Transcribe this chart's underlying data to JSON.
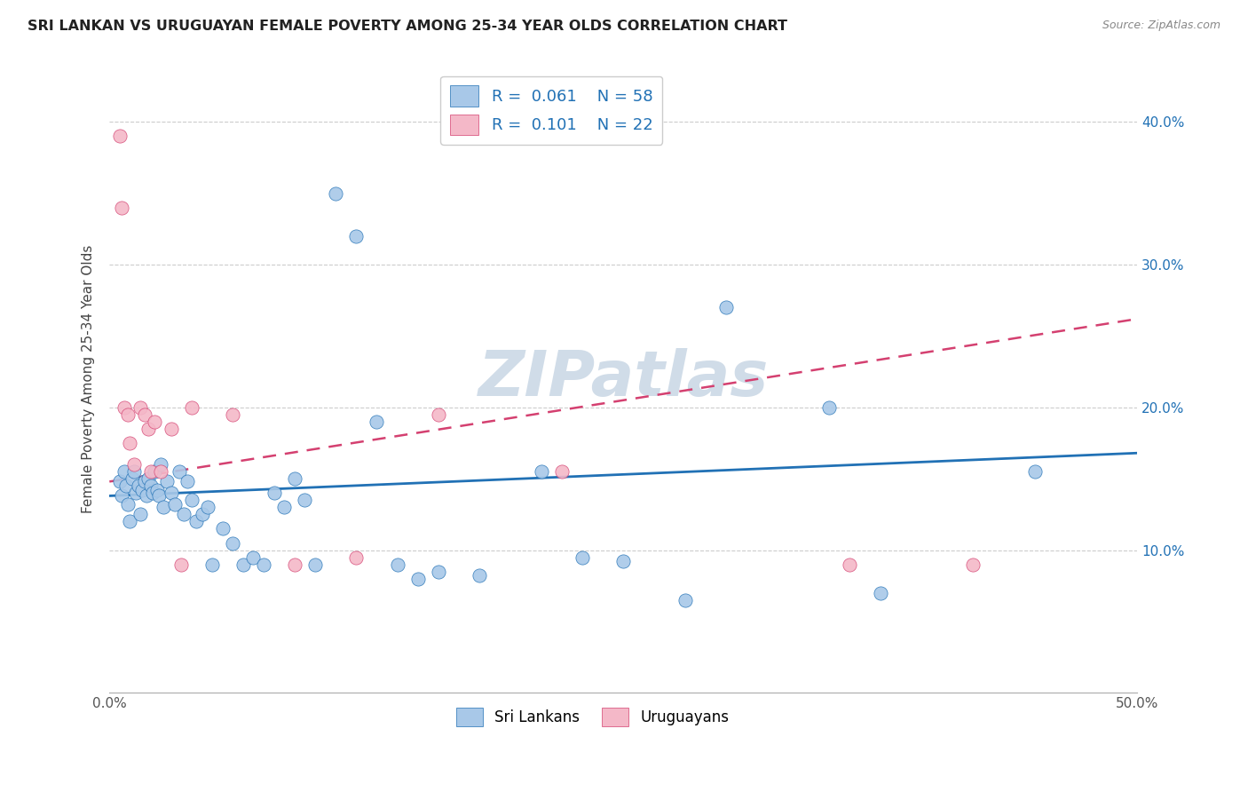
{
  "title": "SRI LANKAN VS URUGUAYAN FEMALE POVERTY AMONG 25-34 YEAR OLDS CORRELATION CHART",
  "source": "Source: ZipAtlas.com",
  "ylabel": "Female Poverty Among 25-34 Year Olds",
  "xlim": [
    0.0,
    0.5
  ],
  "ylim": [
    0.0,
    0.44
  ],
  "xticks": [
    0.0,
    0.1,
    0.2,
    0.3,
    0.4,
    0.5
  ],
  "xticklabels": [
    "0.0%",
    "",
    "",
    "",
    "",
    "50.0%"
  ],
  "yticks": [
    0.1,
    0.2,
    0.3,
    0.4
  ],
  "yticklabels": [
    "10.0%",
    "20.0%",
    "30.0%",
    "40.0%"
  ],
  "sri_lankans_R": "0.061",
  "sri_lankans_N": "58",
  "uruguayans_R": "0.101",
  "uruguayans_N": "22",
  "blue_color": "#a8c8e8",
  "pink_color": "#f4b8c8",
  "blue_line_color": "#2171b5",
  "pink_line_color": "#d44070",
  "watermark_color": "#d0dce8",
  "background_color": "#ffffff",
  "sri_lankans_x": [
    0.005,
    0.006,
    0.007,
    0.008,
    0.009,
    0.01,
    0.011,
    0.012,
    0.013,
    0.014,
    0.015,
    0.016,
    0.017,
    0.018,
    0.019,
    0.02,
    0.021,
    0.022,
    0.023,
    0.024,
    0.025,
    0.026,
    0.028,
    0.03,
    0.032,
    0.034,
    0.036,
    0.038,
    0.04,
    0.042,
    0.045,
    0.048,
    0.05,
    0.055,
    0.06,
    0.065,
    0.07,
    0.075,
    0.08,
    0.085,
    0.09,
    0.095,
    0.1,
    0.11,
    0.12,
    0.13,
    0.14,
    0.15,
    0.16,
    0.18,
    0.21,
    0.23,
    0.25,
    0.28,
    0.3,
    0.35,
    0.375,
    0.45
  ],
  "sri_lankans_y": [
    0.148,
    0.138,
    0.155,
    0.145,
    0.132,
    0.12,
    0.15,
    0.155,
    0.14,
    0.145,
    0.125,
    0.142,
    0.148,
    0.138,
    0.15,
    0.145,
    0.14,
    0.155,
    0.142,
    0.138,
    0.16,
    0.13,
    0.148,
    0.14,
    0.132,
    0.155,
    0.125,
    0.148,
    0.135,
    0.12,
    0.125,
    0.13,
    0.09,
    0.115,
    0.105,
    0.09,
    0.095,
    0.09,
    0.14,
    0.13,
    0.15,
    0.135,
    0.09,
    0.35,
    0.32,
    0.19,
    0.09,
    0.08,
    0.085,
    0.082,
    0.155,
    0.095,
    0.092,
    0.065,
    0.27,
    0.2,
    0.07,
    0.155
  ],
  "uruguayans_x": [
    0.005,
    0.006,
    0.007,
    0.009,
    0.01,
    0.012,
    0.015,
    0.017,
    0.019,
    0.02,
    0.022,
    0.025,
    0.03,
    0.035,
    0.04,
    0.06,
    0.09,
    0.12,
    0.16,
    0.22,
    0.36,
    0.42
  ],
  "uruguayans_y": [
    0.39,
    0.34,
    0.2,
    0.195,
    0.175,
    0.16,
    0.2,
    0.195,
    0.185,
    0.155,
    0.19,
    0.155,
    0.185,
    0.09,
    0.2,
    0.195,
    0.09,
    0.095,
    0.195,
    0.155,
    0.09,
    0.09
  ],
  "blue_line_y0": 0.138,
  "blue_line_y1": 0.168,
  "pink_line_y0": 0.148,
  "pink_line_y1": 0.262
}
